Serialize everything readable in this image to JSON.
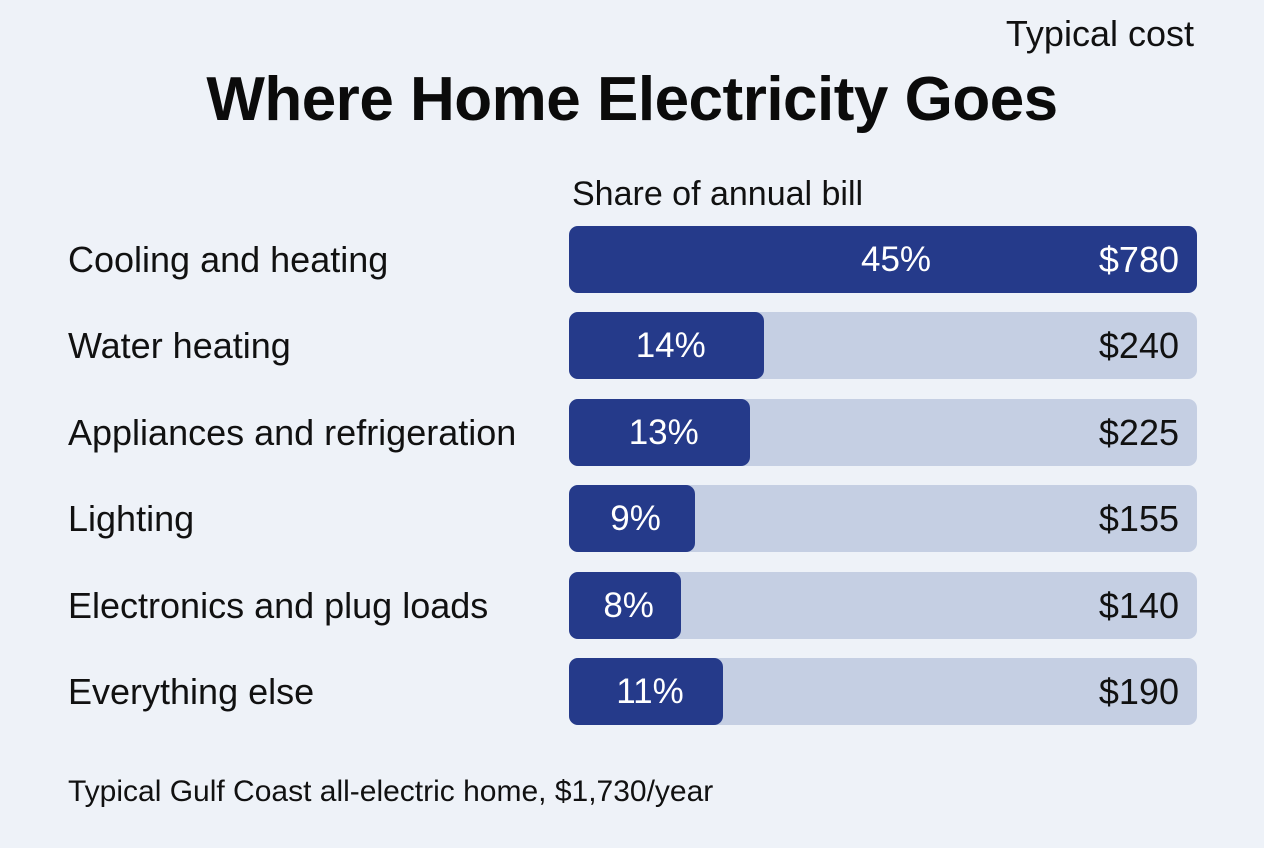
{
  "chart_data": {
    "type": "bar",
    "title": "Where Home Electricity Goes",
    "column_headers": {
      "share": "Share of annual bill",
      "cost": "Typical cost"
    },
    "categories": [
      "Cooling and heating",
      "Water heating",
      "Appliances and refrigeration",
      "Lighting",
      "Electronics and plug loads",
      "Everything else"
    ],
    "values": [
      45,
      14,
      13,
      9,
      8,
      11
    ],
    "value_labels": [
      "45%",
      "14%",
      "13%",
      "9%",
      "8%",
      "11%"
    ],
    "costs": [
      "$780",
      "$240",
      "$225",
      "$155",
      "$140",
      "$190"
    ],
    "xlim": [
      0,
      45
    ],
    "grid": false,
    "footnote": "Typical Gulf Coast all-electric home, $1,730/year",
    "colors": {
      "fill": "#253a8a",
      "track": "#c5cfe3",
      "background": "#eef2f8"
    }
  }
}
